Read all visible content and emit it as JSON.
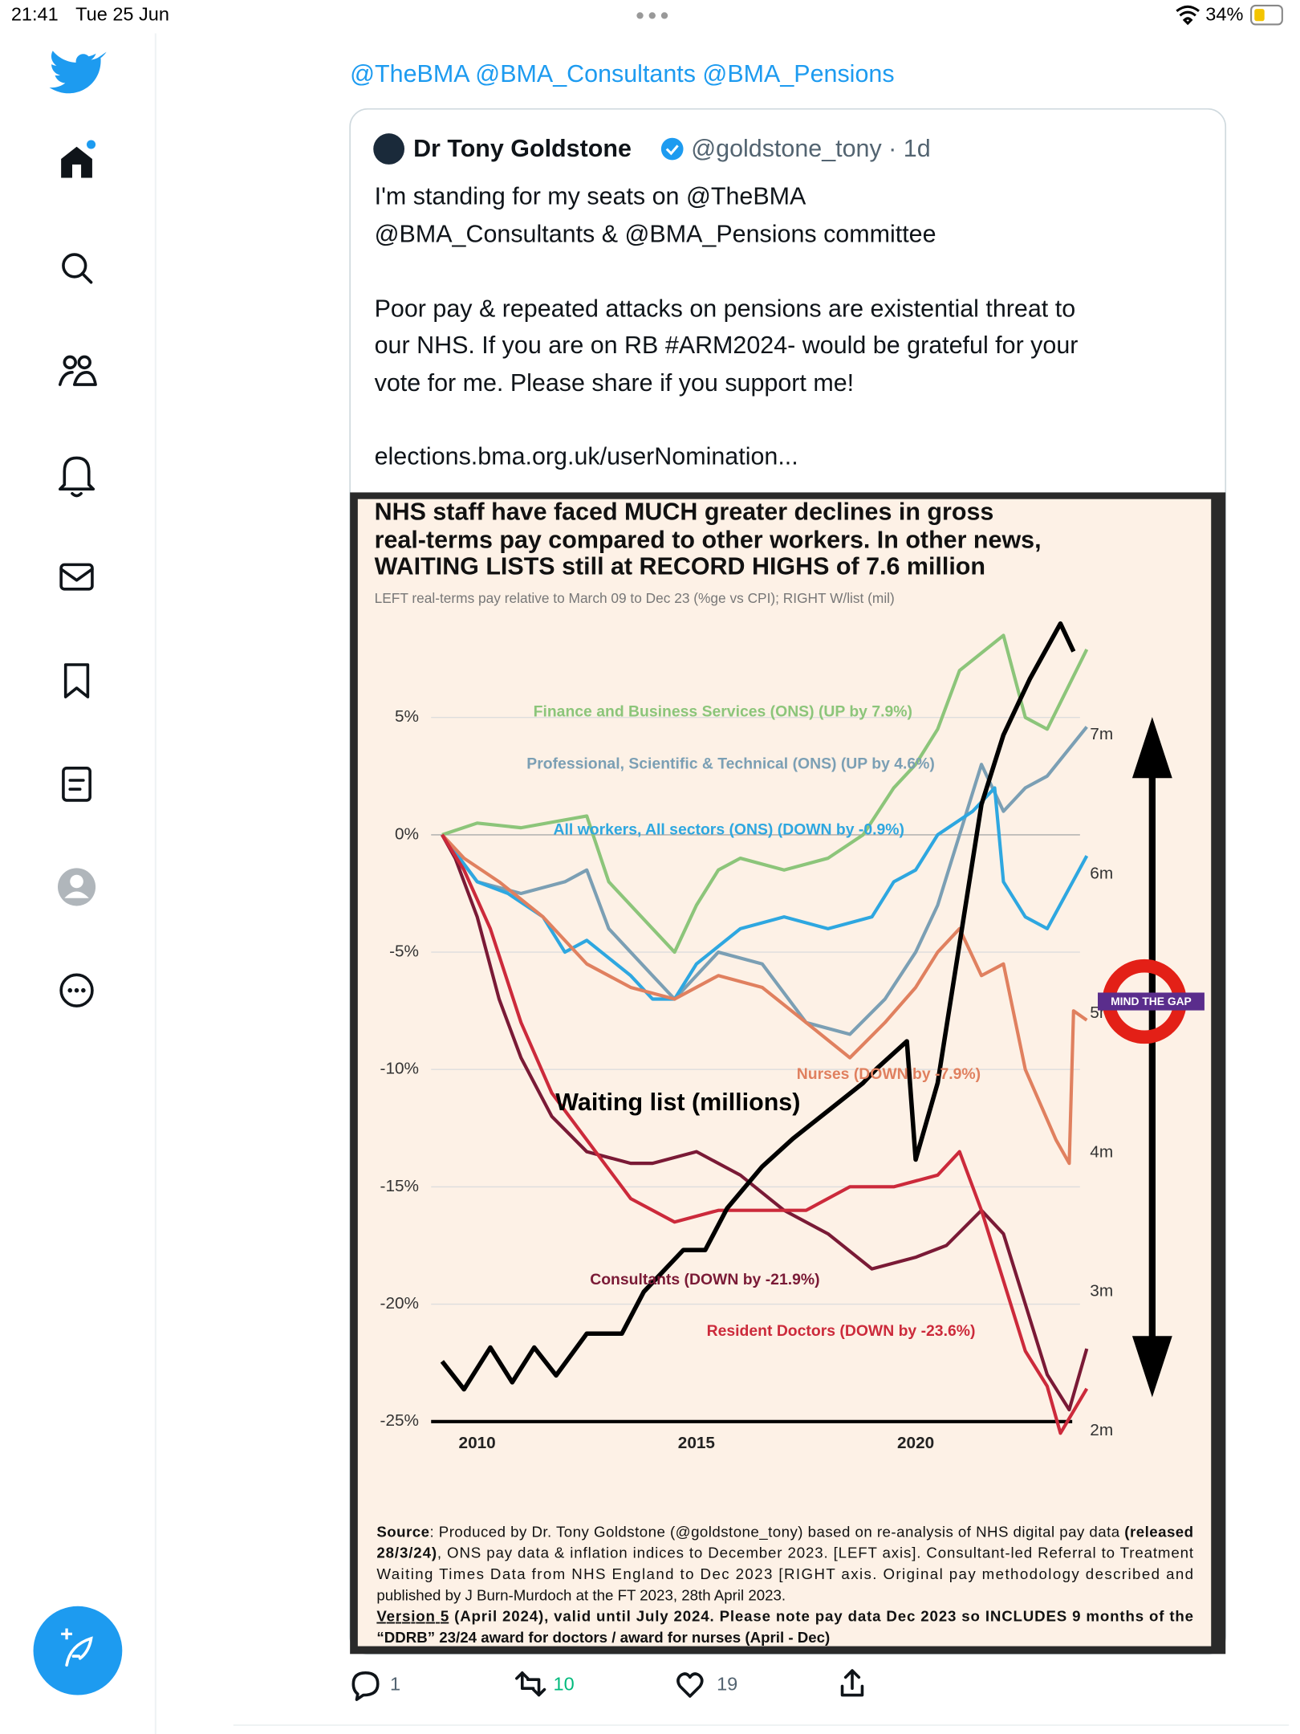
{
  "status_bar": {
    "time": "21:41",
    "date": "Tue 25 Jun",
    "battery": "34%"
  },
  "tweet": {
    "reply_to": "@TheBMA @BMA_Consultants @BMA_Pensions",
    "quoted": {
      "name": "Dr Tony Goldstone",
      "meta": "@goldstone_tony · 1d",
      "lines": [
        "I'm standing for my seats on @TheBMA",
        "@BMA_Consultants & @BMA_Pensions committee",
        "Poor pay & repeated attacks on pensions are existential threat to",
        "our NHS. If you are on RB #ARM2024- would be grateful for your",
        "vote for me. Please share if you support me!",
        "elections.bma.org.uk/userNomination..."
      ]
    },
    "actions": {
      "replies": 1,
      "retweets": 10,
      "likes": 19
    }
  },
  "chart_data": {
    "type": "line",
    "title": [
      "NHS staff have faced MUCH greater declines in gross",
      "real-terms pay compared to other workers. In other news,",
      "WAITING LISTS still at RECORD HIGHS of 7.6 million"
    ],
    "subtitle": "LEFT real-terms pay relative to March 09 to Dec 23 (%ge vs CPI); RIGHT W/list (mil)",
    "xlim": [
      2009,
      2024
    ],
    "xticks": [
      2010,
      2015,
      2020
    ],
    "ylim": [
      -26,
      9
    ],
    "yticks": [
      {
        "value": 5,
        "label": "5%"
      },
      {
        "value": 0,
        "label": "0%"
      },
      {
        "value": -5,
        "label": "-5%"
      },
      {
        "value": -10,
        "label": "-10%"
      },
      {
        "value": -15,
        "label": "-15%"
      },
      {
        "value": -20,
        "label": "-20%"
      },
      {
        "value": -25,
        "label": "-25%"
      }
    ],
    "y2lim": [
      1.9,
      7.8
    ],
    "y2ticks": [
      {
        "value": 7,
        "label": "7m"
      },
      {
        "value": 6,
        "label": "6m"
      },
      {
        "value": 5,
        "label": "5m"
      },
      {
        "value": 4,
        "label": "4m"
      },
      {
        "value": 3,
        "label": "3m"
      },
      {
        "value": 2,
        "label": "2m"
      }
    ],
    "grid": true,
    "series": [
      {
        "name": "Finance and Business Services (ONS) (UP by 7.9%)",
        "color": "#8cc57a",
        "x": [
          2009.2,
          2010,
          2011,
          2012.5,
          2013,
          2014,
          2014.5,
          2015,
          2015.5,
          2016,
          2017,
          2018,
          2018.8,
          2019.5,
          2020,
          2020.5,
          2021,
          2022,
          2022.5,
          2023,
          2023.9
        ],
        "values": [
          0,
          0.5,
          0.3,
          0.8,
          -2,
          -4,
          -5,
          -3,
          -1.5,
          -1,
          -1.5,
          -1,
          0,
          2,
          3,
          4.5,
          7,
          8.5,
          5,
          4.5,
          7.9
        ]
      },
      {
        "name": "Professional, Scientific & Technical (ONS) (UP by 4.6%)",
        "color": "#7b9fb4",
        "x": [
          2009.2,
          2010,
          2011,
          2012,
          2012.5,
          2013,
          2014,
          2014.5,
          2015.5,
          2016.5,
          2017.5,
          2018.5,
          2019.3,
          2020,
          2020.5,
          2021,
          2021.5,
          2022,
          2022.5,
          2023,
          2023.9
        ],
        "values": [
          0,
          -2,
          -2.5,
          -2,
          -1.5,
          -4,
          -6,
          -7,
          -5,
          -5.5,
          -8,
          -8.5,
          -7,
          -5,
          -3,
          0,
          3,
          1,
          2,
          2.5,
          4.6
        ]
      },
      {
        "name": "All workers, All sectors (ONS) (DOWN by -0.9%)",
        "color": "#2ea7e0",
        "x": [
          2009.2,
          2010,
          2010.7,
          2011.5,
          2012,
          2012.5,
          2013.5,
          2014,
          2014.5,
          2015,
          2016,
          2017,
          2018,
          2019,
          2019.5,
          2020,
          2020.5,
          2021.3,
          2021.8,
          2022,
          2022.5,
          2023,
          2023.9
        ],
        "values": [
          0,
          -2,
          -2.5,
          -3.5,
          -5,
          -4.5,
          -6,
          -7,
          -7,
          -5.5,
          -4,
          -3.5,
          -4,
          -3.5,
          -2,
          -1.5,
          0,
          1,
          2,
          -2,
          -3.5,
          -4,
          -0.9
        ]
      },
      {
        "name": "Nurses (DOWN by -7.9%)",
        "color": "#e0805f",
        "x": [
          2009.2,
          2009.7,
          2010.5,
          2011.5,
          2012.5,
          2013.5,
          2014.5,
          2015.5,
          2016.5,
          2017.5,
          2018.5,
          2019.3,
          2020,
          2020.5,
          2021,
          2021.5,
          2022,
          2022.5,
          2023.2,
          2023.5,
          2023.6,
          2023.9
        ],
        "values": [
          0,
          -1,
          -2,
          -3.5,
          -5.5,
          -6.5,
          -7,
          -6,
          -6.5,
          -8,
          -9.5,
          -8,
          -6.5,
          -5,
          -4,
          -6,
          -5.5,
          -10,
          -13,
          -14,
          -7.5,
          -7.9
        ]
      },
      {
        "name": "Consultants (DOWN by -21.9%)",
        "color": "#7a1a36",
        "x": [
          2009.2,
          2009.5,
          2010,
          2010.5,
          2011,
          2011.7,
          2012.5,
          2013.5,
          2014,
          2015,
          2016,
          2017,
          2018,
          2019,
          2020,
          2020.7,
          2021.5,
          2022,
          2022.5,
          2023,
          2023.5,
          2023.9
        ],
        "values": [
          0,
          -1,
          -3.5,
          -7,
          -9.5,
          -12,
          -13.5,
          -14,
          -14,
          -13.5,
          -14.5,
          -16,
          -17,
          -18.5,
          -18,
          -17.5,
          -16,
          -17,
          -20,
          -23,
          -24.5,
          -21.9
        ]
      },
      {
        "name": "Resident Doctors (DOWN by -23.6%)",
        "color": "#cc2a3b",
        "x": [
          2009.2,
          2009.7,
          2010.3,
          2011,
          2011.7,
          2012.5,
          2013.5,
          2014.5,
          2015.5,
          2016.5,
          2017.5,
          2018.5,
          2019.5,
          2020.5,
          2021,
          2021.5,
          2022,
          2022.5,
          2023,
          2023.3,
          2023.9
        ],
        "values": [
          0,
          -1.5,
          -4,
          -8,
          -11,
          -13,
          -15.5,
          -16.5,
          -16,
          -16,
          -16,
          -15,
          -15,
          -14.5,
          -13.5,
          -16,
          -19,
          -22,
          -23.5,
          -25.5,
          -23.6
        ]
      },
      {
        "name": "Waiting list (millions)",
        "color": "#000000",
        "axis": "y2",
        "x": [
          2009.2,
          2009.7,
          2010.3,
          2010.8,
          2011.3,
          2011.8,
          2012.5,
          2013.3,
          2013.8,
          2014.7,
          2015.2,
          2015.7,
          2016.5,
          2017.2,
          2018,
          2018.8,
          2019.1,
          2019.8,
          2020,
          2020.5,
          2021,
          2021.5,
          2022,
          2022.6,
          2023.3,
          2023.6
        ],
        "values": [
          2.5,
          2.3,
          2.6,
          2.35,
          2.6,
          2.4,
          2.7,
          2.7,
          3,
          3.3,
          3.3,
          3.6,
          3.9,
          4.1,
          4.3,
          4.5,
          4.6,
          4.8,
          3.95,
          4.5,
          5.5,
          6.5,
          7,
          7.4,
          7.8,
          7.6
        ]
      }
    ],
    "badge": "MIND THE GAP",
    "source": [
      [
        {
          "text": "Source",
          "bold": true
        },
        {
          "text": ": Produced by Dr. Tony Goldstone (@goldstone_tony) based on re-analysis of NHS digital pay data ",
          "bold": false
        },
        {
          "text": "(released",
          "bold": true
        }
      ],
      [
        {
          "text": "28/3/24)",
          "bold": true
        },
        {
          "text": ", ONS pay data & inflation indices to December 2023. [LEFT axis]. Consultant-led Referral to Treatment",
          "bold": false
        }
      ],
      [
        {
          "text": "Waiting Times Data from NHS England to Dec 2023 [RIGHT axis. Original pay methodology described and",
          "bold": false
        }
      ],
      [
        {
          "text": "published by J Burn-Murdoch at the FT 2023, 28th April 2023.",
          "bold": false
        }
      ],
      [
        {
          "text": "Version 5",
          "bold": true,
          "underline": true
        },
        {
          "text": " (April 2024), valid until July 2024. Please note pay data Dec 2023 so INCLUDES 9 months of the",
          "bold": true
        }
      ],
      [
        {
          "text": "“DDRB” 23/24 award  for doctors / award for nurses (April - Dec)",
          "bold": true
        }
      ]
    ]
  }
}
